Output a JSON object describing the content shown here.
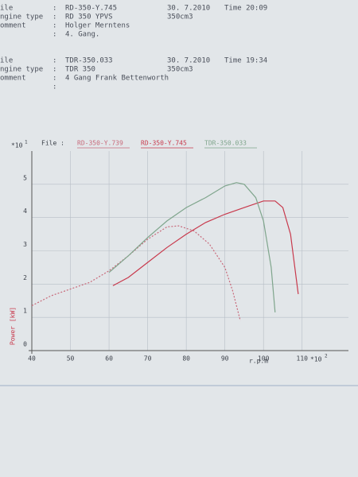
{
  "header": [
    {
      "label": "ile",
      "sep": ":",
      "value": "RD-350-Y.745",
      "date": "30. 7.2010",
      "time": "Time 20:09"
    },
    {
      "label": "ngine type",
      "sep": ":",
      "value": "RD 350 YPVS",
      "date": "350cm3"
    },
    {
      "label": "omment",
      "sep": ":",
      "value": "Holger Merntens"
    },
    {
      "sep": ":",
      "value": "4. Gang."
    },
    {
      "label": "ile",
      "sep": ":",
      "value": "TDR-350.033",
      "date": "30. 7.2010",
      "time": "Time 19:34"
    },
    {
      "label": "ngine type",
      "sep": ":",
      "value": "TDR 350",
      "date": "350cm3"
    },
    {
      "label": "omment",
      "sep": ":",
      "value": "4 Gang Frank Bettenworth"
    },
    {
      "sep": ":"
    }
  ],
  "chart_data": {
    "type": "line",
    "legend_title": "File :",
    "ylabel": "Power [kW]",
    "xlabel": "r.p.m",
    "y_scale_label": "*10",
    "y_scale_exp": "1",
    "x_scale_label": "*10",
    "x_scale_exp": "2",
    "xlim": [
      40,
      122
    ],
    "ylim": [
      0,
      6
    ],
    "xticks": [
      40,
      50,
      60,
      70,
      80,
      90,
      100,
      110
    ],
    "yticks": [
      0,
      1,
      2,
      3,
      4,
      5
    ],
    "grid": true,
    "series": [
      {
        "name": "RD-350-Y.739",
        "color": "#c8697a",
        "dashed": true,
        "x": [
          40,
          45,
          50,
          55,
          60,
          65,
          70,
          75,
          78,
          82,
          86,
          90,
          92,
          94
        ],
        "values": [
          1.35,
          1.65,
          1.85,
          2.05,
          2.4,
          2.85,
          3.35,
          3.72,
          3.75,
          3.6,
          3.2,
          2.5,
          1.8,
          0.9
        ]
      },
      {
        "name": "RD-350-Y.745",
        "color": "#c8394c",
        "dashed": false,
        "x": [
          61,
          65,
          70,
          75,
          80,
          85,
          90,
          95,
          100,
          103,
          105,
          107,
          109
        ],
        "values": [
          1.95,
          2.2,
          2.65,
          3.1,
          3.5,
          3.85,
          4.1,
          4.3,
          4.5,
          4.5,
          4.3,
          3.5,
          1.7
        ]
      },
      {
        "name": "TDR-350.033",
        "color": "#7fa58c",
        "dashed": false,
        "x": [
          60,
          65,
          70,
          75,
          80,
          85,
          90,
          93,
          95,
          98,
          100,
          102,
          103
        ],
        "values": [
          2.35,
          2.85,
          3.4,
          3.9,
          4.3,
          4.6,
          4.95,
          5.05,
          5.0,
          4.6,
          3.9,
          2.5,
          1.15
        ]
      }
    ]
  }
}
